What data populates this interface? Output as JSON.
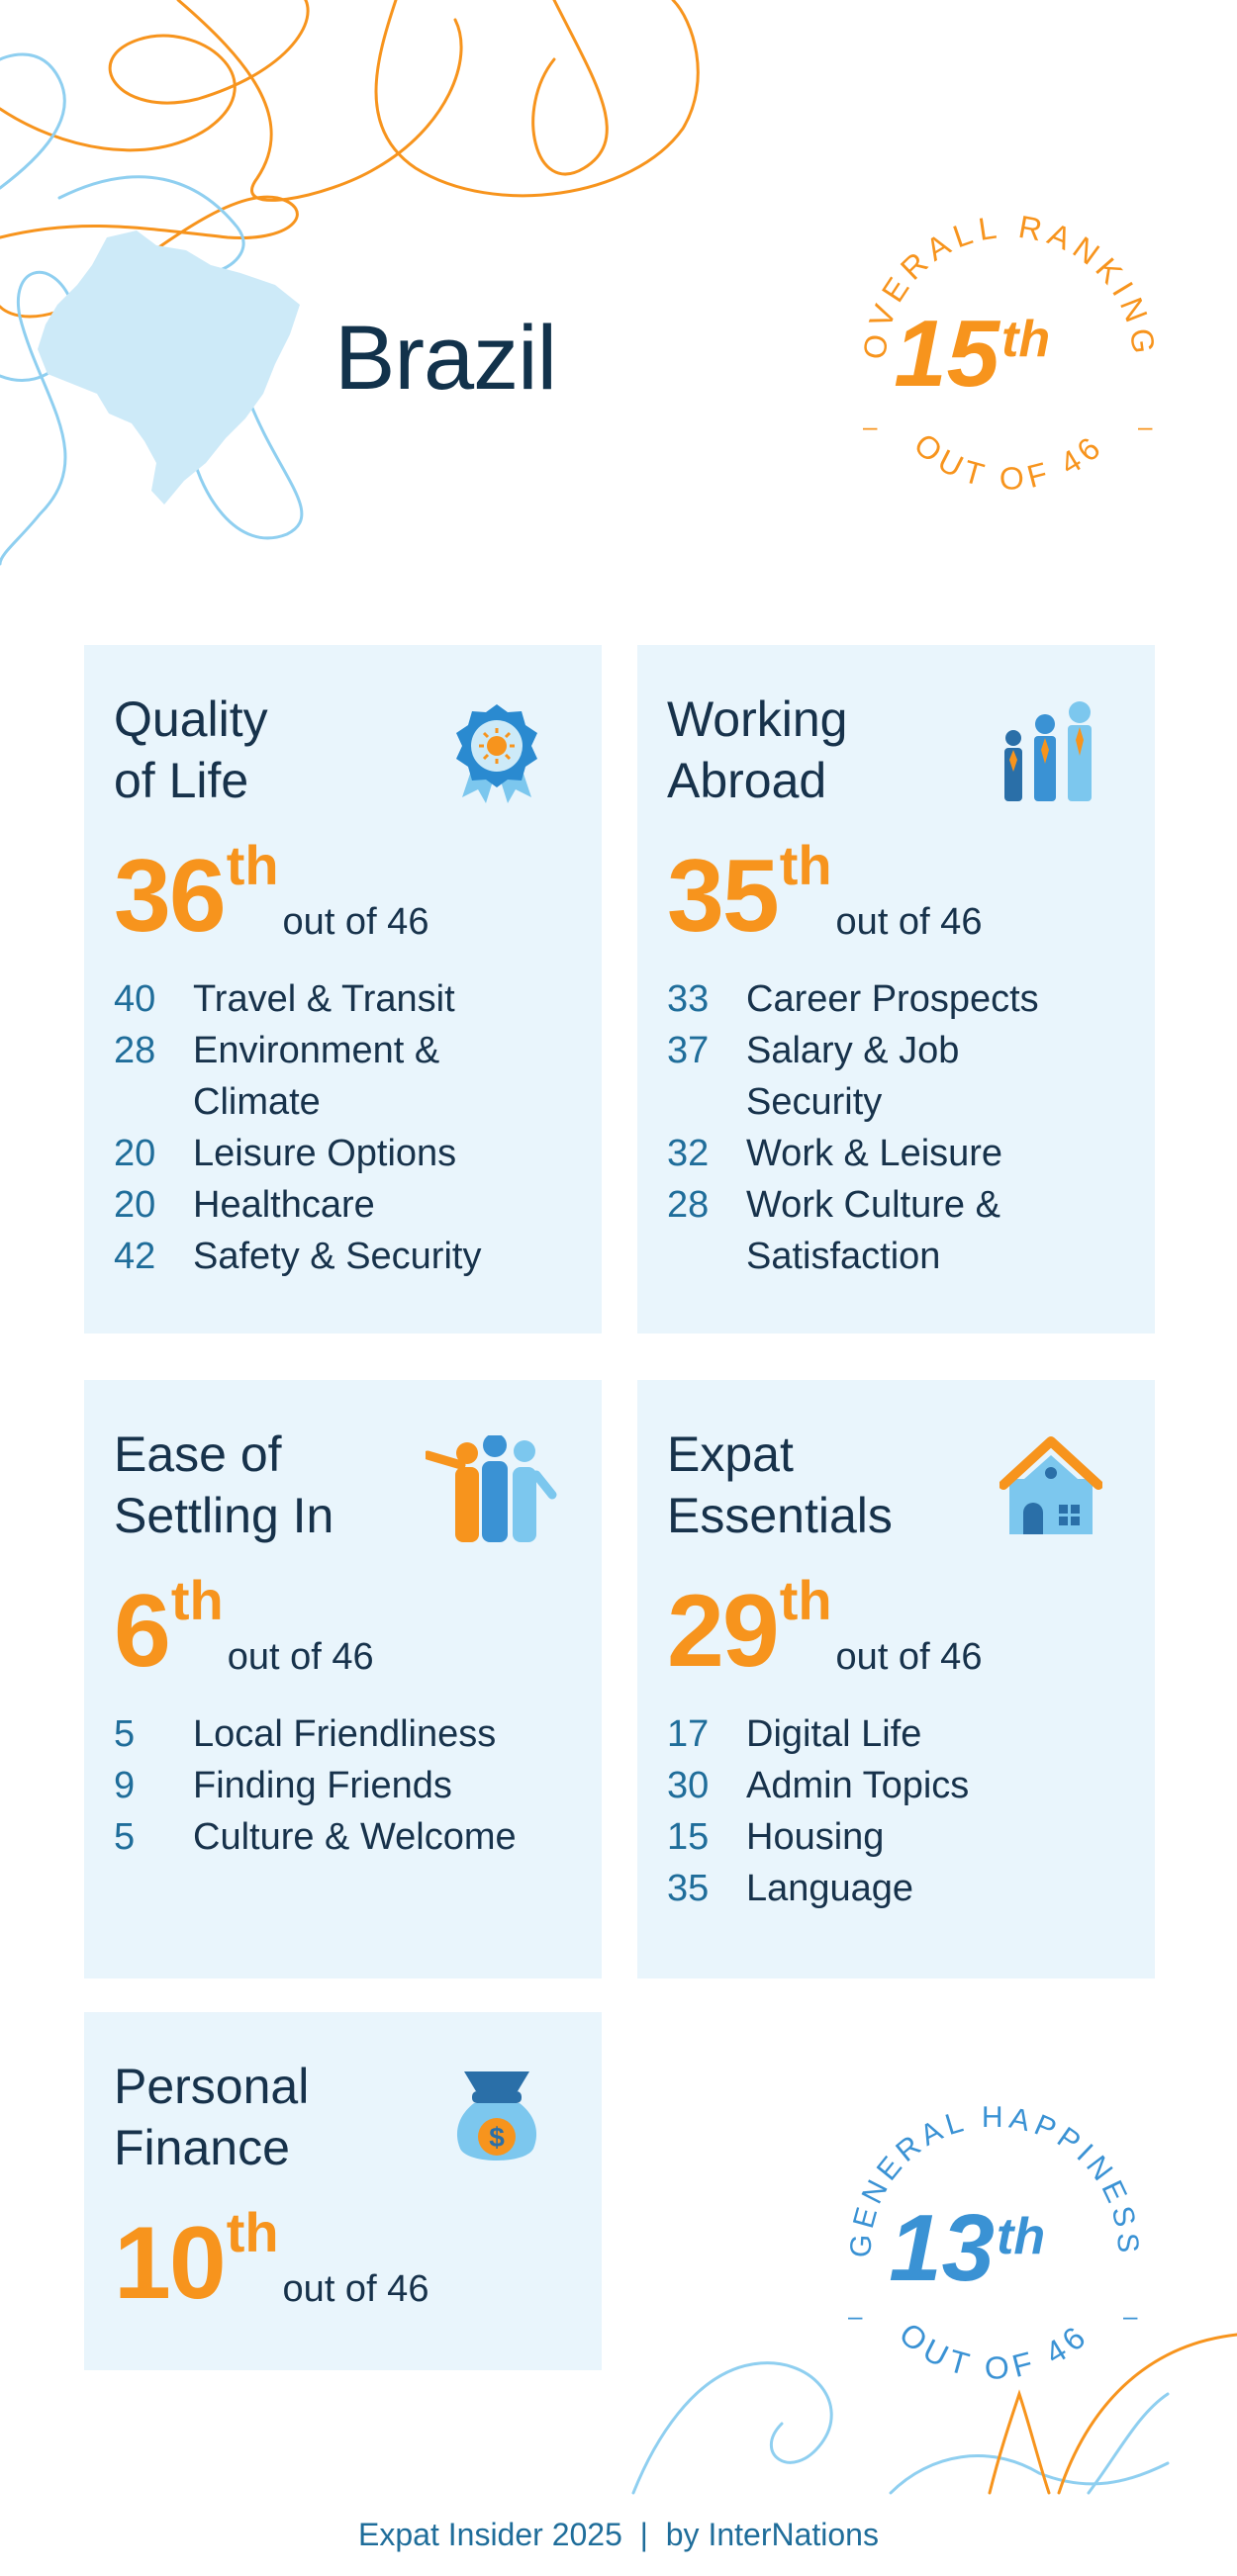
{
  "country": "Brazil",
  "overall": {
    "label": "OVERALL RANKING",
    "rank": "15",
    "suffix": "th",
    "outof": "OUT OF 46"
  },
  "happiness": {
    "label": "GENERAL HAPPINESS",
    "rank": "13",
    "suffix": "th",
    "outof": "OUT OF 46"
  },
  "cards": {
    "quality": {
      "title": "Quality\nof Life",
      "rank": "36",
      "suffix": "th",
      "outof": "out of 46",
      "icon": "award-ribbon-icon",
      "items": [
        {
          "n": "40",
          "label": "Travel & Transit"
        },
        {
          "n": "28",
          "label": "Environment &\nClimate"
        },
        {
          "n": "20",
          "label": "Leisure Options"
        },
        {
          "n": "20",
          "label": "Healthcare"
        },
        {
          "n": "42",
          "label": "Safety & Security"
        }
      ]
    },
    "working": {
      "title": "Working\nAbroad",
      "rank": "35",
      "suffix": "th",
      "outof": "out of 46",
      "icon": "business-people-icon",
      "items": [
        {
          "n": "33",
          "label": "Career Prospects"
        },
        {
          "n": "37",
          "label": "Salary & Job\nSecurity"
        },
        {
          "n": "32",
          "label": "Work & Leisure"
        },
        {
          "n": "28",
          "label": "Work Culture &\nSatisfaction"
        }
      ]
    },
    "settling": {
      "title": "Ease of\nSettling In",
      "rank": "6",
      "suffix": "th",
      "outof": "out of 46",
      "icon": "waving-people-icon",
      "items": [
        {
          "n": "5",
          "label": "Local Friendliness"
        },
        {
          "n": "9",
          "label": "Finding Friends"
        },
        {
          "n": "5",
          "label": "Culture & Welcome"
        }
      ]
    },
    "essentials": {
      "title": "Expat\nEssentials",
      "rank": "29",
      "suffix": "th",
      "outof": "out of 46",
      "icon": "house-icon",
      "items": [
        {
          "n": "17",
          "label": "Digital Life"
        },
        {
          "n": "30",
          "label": "Admin Topics"
        },
        {
          "n": "15",
          "label": "Housing"
        },
        {
          "n": "35",
          "label": "Language"
        }
      ]
    },
    "finance": {
      "title": "Personal\nFinance",
      "rank": "10",
      "suffix": "th",
      "outof": "out of 46",
      "icon": "money-bag-icon",
      "items": []
    }
  },
  "footer": {
    "brand": "Expat Insider 2025",
    "sep": "|",
    "by": "by InterNations"
  },
  "colors": {
    "orange": "#f7941d",
    "dark": "#17324b",
    "blue": "#1f6d9a",
    "card": "#e9f5fc",
    "light_blue": "#8fcff0"
  }
}
